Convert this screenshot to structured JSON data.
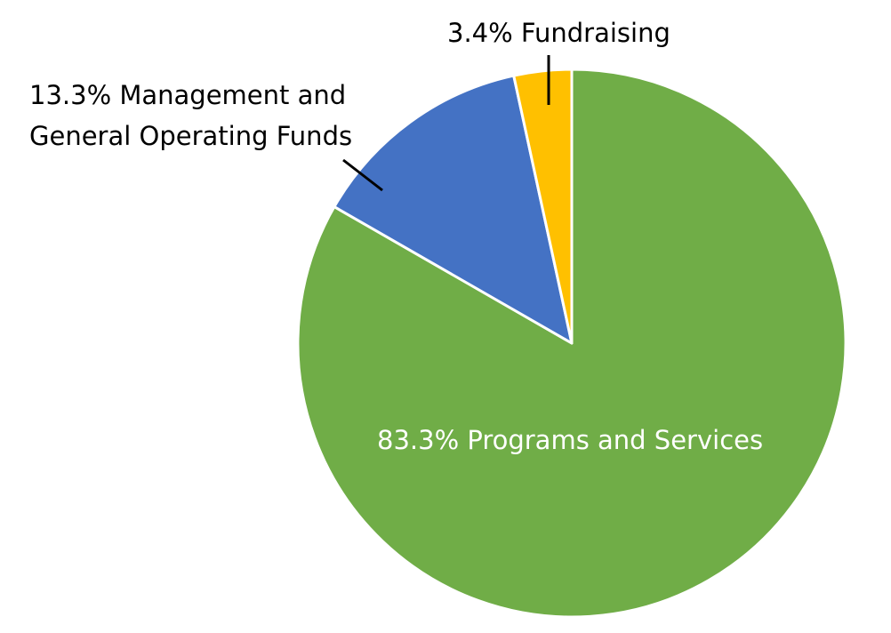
{
  "chart_data": {
    "type": "pie",
    "title": "",
    "categories": [
      "Programs and Services",
      "Management and General Operating Funds",
      "Fundraising"
    ],
    "values": [
      83.3,
      13.3,
      3.4
    ],
    "unit": "%",
    "colors": [
      "#70AD47",
      "#4472C4",
      "#FFC000"
    ],
    "start_angle_deg": 0,
    "direction": "clockwise",
    "legend": "none",
    "data_labels": [
      {
        "text_lines": [
          "83.3% Programs and Services"
        ],
        "position": "inside"
      },
      {
        "text_lines": [
          "13.3% Management and",
          "General Operating Funds"
        ],
        "position": "outside-left",
        "leader_line": true
      },
      {
        "text_lines": [
          "3.4% Fundraising"
        ],
        "position": "outside-top",
        "leader_line": true
      }
    ]
  },
  "labels": {
    "programs": "83.3% Programs and Services",
    "management_line1": "13.3% Management and",
    "management_line2": "General Operating Funds",
    "fundraising": "3.4% Fundraising"
  }
}
